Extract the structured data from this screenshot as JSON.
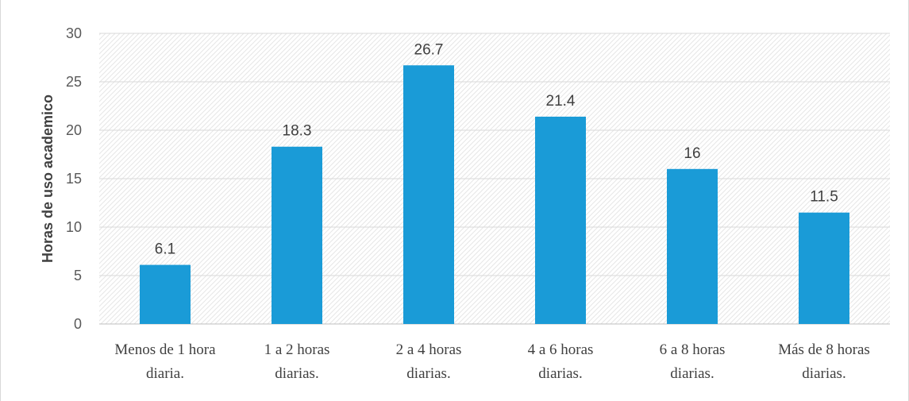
{
  "chart_data": {
    "type": "bar",
    "categories": [
      [
        "Menos de 1 hora",
        "diaria."
      ],
      [
        "1 a 2 horas",
        "diarias."
      ],
      [
        "2 a 4 horas",
        "diarias."
      ],
      [
        "4 a 6 horas",
        "diarias."
      ],
      [
        "6 a 8 horas",
        "diarias."
      ],
      [
        "Más de 8 horas",
        "diarias."
      ]
    ],
    "values": [
      6.1,
      18.3,
      26.7,
      21.4,
      16,
      11.5
    ],
    "value_labels": [
      "6.1",
      "18.3",
      "26.7",
      "21.4",
      "16",
      "11.5"
    ],
    "ylabel": "Horas de uso academico",
    "xlabel": "",
    "ylim": [
      0,
      30
    ],
    "yticks": [
      0,
      5,
      10,
      15,
      20,
      25,
      30
    ],
    "grid": true,
    "bar_color": "#1a9bd7",
    "grid_color": "#d9d9d9"
  }
}
